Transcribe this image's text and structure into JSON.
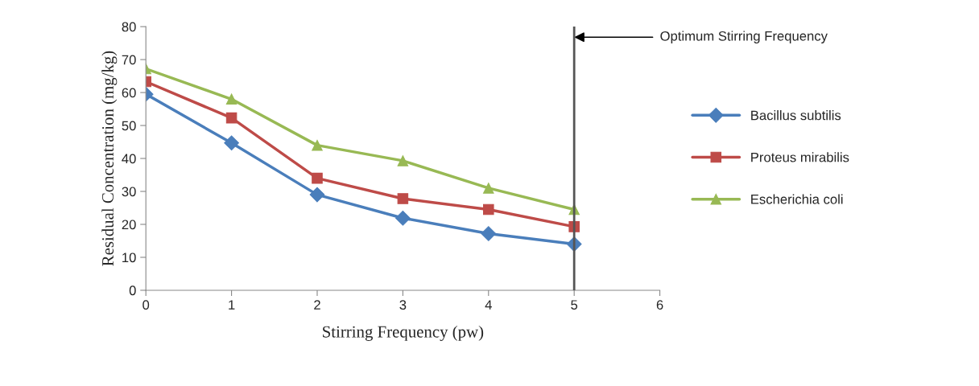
{
  "chart_data": {
    "type": "line",
    "xlabel": "Stirring Frequency (pw)",
    "ylabel": "Residual Concentration (mg/kg)",
    "x": [
      0,
      1,
      2,
      3,
      4,
      5
    ],
    "series": [
      {
        "name": "Bacillus subtilis",
        "color": "#4a7ebb",
        "marker": "diamond",
        "values": [
          59.5,
          44.7,
          29.0,
          21.9,
          17.2,
          14.0
        ]
      },
      {
        "name": "Proteus mirabilis",
        "color": "#be4b48",
        "marker": "square",
        "values": [
          63.3,
          52.3,
          34.0,
          27.8,
          24.5,
          19.3
        ]
      },
      {
        "name": "Escherichia coli",
        "color": "#98b954",
        "marker": "triangle",
        "values": [
          67.2,
          58.0,
          44.0,
          39.3,
          31.0,
          24.5
        ]
      }
    ],
    "xlim": [
      0,
      6
    ],
    "xticks": [
      0,
      1,
      2,
      3,
      4,
      5,
      6
    ],
    "ylim": [
      0,
      80
    ],
    "yticks": [
      0,
      10,
      20,
      30,
      40,
      50,
      60,
      70,
      80
    ],
    "ref_lines": [
      {
        "axis": "x",
        "value": 5,
        "label": "Optimum Stirring Frequency",
        "color": "#555555",
        "line_style": "solid"
      }
    ],
    "grid": false,
    "legend": "right",
    "line_style": "solid"
  }
}
